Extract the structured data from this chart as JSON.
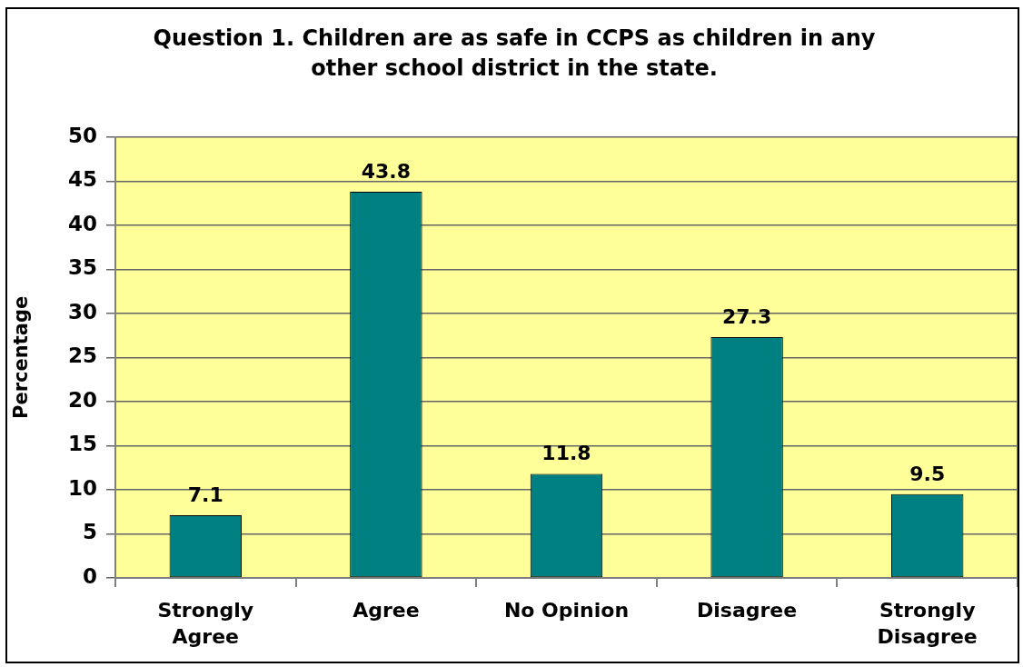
{
  "chart_data": {
    "type": "bar",
    "title": "Question 1. Children are as safe in CCPS as children in any other school district in the state.",
    "ylabel": "Percentage",
    "categories": [
      "Strongly Agree",
      "Agree",
      "No Opinion",
      "Disagree",
      "Strongly Disagree"
    ],
    "values": [
      7.1,
      43.8,
      11.8,
      27.3,
      9.5
    ],
    "color": "#008080",
    "ylim": [
      0,
      50
    ],
    "yticks": [
      0,
      5,
      10,
      15,
      20,
      25,
      30,
      35,
      40,
      45,
      50
    ],
    "grid": "y",
    "data_labels": true,
    "legend": false
  }
}
